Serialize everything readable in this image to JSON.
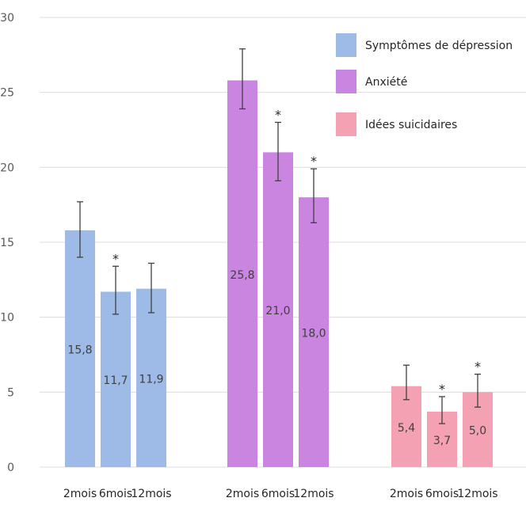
{
  "chart_data": {
    "type": "bar",
    "title": "",
    "xlabel": "",
    "ylabel": "",
    "ylim": [
      0,
      30
    ],
    "yticks": [
      "0",
      "5",
      "10",
      "15",
      "20",
      "25",
      "30"
    ],
    "grid": "horizontal",
    "legend_position": "top-right",
    "groups": [
      {
        "name": "Symptômes de dépression",
        "color": "#9dbbe6",
        "categories": [
          "2mois",
          "6mois",
          "12mois"
        ],
        "values": [
          15.8,
          11.7,
          11.9
        ],
        "value_labels": [
          "15,8",
          "11,7",
          "11,9"
        ],
        "error_low": [
          14.0,
          10.2,
          10.3
        ],
        "error_high": [
          17.7,
          13.4,
          13.6
        ],
        "significant": [
          false,
          true,
          false
        ]
      },
      {
        "name": "Anxiété",
        "color": "#c985e0",
        "categories": [
          "2mois",
          "6mois",
          "12mois"
        ],
        "values": [
          25.8,
          21.0,
          18.0
        ],
        "value_labels": [
          "25,8",
          "21,0",
          "18,0"
        ],
        "error_low": [
          23.9,
          19.1,
          16.3
        ],
        "error_high": [
          27.9,
          23.0,
          19.9
        ],
        "significant": [
          false,
          true,
          true
        ]
      },
      {
        "name": "Idées suicidaires",
        "color": "#f3a1b3",
        "categories": [
          "2mois",
          "6mois",
          "12mois"
        ],
        "values": [
          5.4,
          3.7,
          5.0
        ],
        "value_labels": [
          "5,4",
          "3,7",
          "5,0"
        ],
        "error_low": [
          4.5,
          2.9,
          4.0
        ],
        "error_high": [
          6.8,
          4.7,
          6.2
        ],
        "significant": [
          false,
          true,
          true
        ]
      }
    ],
    "significance_marker": "*"
  }
}
